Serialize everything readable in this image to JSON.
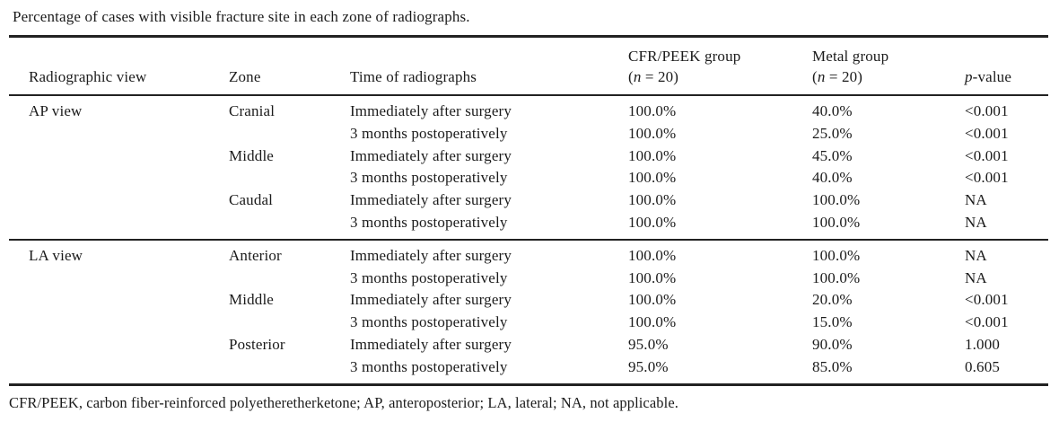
{
  "caption": "Percentage of cases with visible fracture site in each zone of radiographs.",
  "table": {
    "columns": {
      "view": "Radiographic view",
      "zone": "Zone",
      "time": "Time of radiographs",
      "cfr_group": "CFR/PEEK group",
      "metal_group": "Metal group",
      "n_prefix": "(",
      "n_symbol": "n",
      "n_suffix": " = 20)",
      "p_symbol": "p",
      "p_suffix": "-value"
    },
    "rows": [
      {
        "view": "AP view",
        "zone": "Cranial",
        "time": "Immediately after surgery",
        "cfr_peek": "100.0%",
        "metal": "40.0%",
        "p_value": "<0.001"
      },
      {
        "view": "",
        "zone": "",
        "time": "3 months postoperatively",
        "cfr_peek": "100.0%",
        "metal": "25.0%",
        "p_value": "<0.001"
      },
      {
        "view": "",
        "zone": "Middle",
        "time": "Immediately after surgery",
        "cfr_peek": "100.0%",
        "metal": "45.0%",
        "p_value": "<0.001"
      },
      {
        "view": "",
        "zone": "",
        "time": "3 months postoperatively",
        "cfr_peek": "100.0%",
        "metal": "40.0%",
        "p_value": "<0.001"
      },
      {
        "view": "",
        "zone": "Caudal",
        "time": "Immediately after surgery",
        "cfr_peek": "100.0%",
        "metal": "100.0%",
        "p_value": "NA"
      },
      {
        "view": "",
        "zone": "",
        "time": "3 months postoperatively",
        "cfr_peek": "100.0%",
        "metal": "100.0%",
        "p_value": "NA"
      },
      {
        "view": "LA view",
        "zone": "Anterior",
        "time": "Immediately after surgery",
        "cfr_peek": "100.0%",
        "metal": "100.0%",
        "p_value": "NA"
      },
      {
        "view": "",
        "zone": "",
        "time": "3 months postoperatively",
        "cfr_peek": "100.0%",
        "metal": "100.0%",
        "p_value": "NA"
      },
      {
        "view": "",
        "zone": "Middle",
        "time": "Immediately after surgery",
        "cfr_peek": "100.0%",
        "metal": "20.0%",
        "p_value": "<0.001"
      },
      {
        "view": "",
        "zone": "",
        "time": "3 months postoperatively",
        "cfr_peek": "100.0%",
        "metal": "15.0%",
        "p_value": "<0.001"
      },
      {
        "view": "",
        "zone": "Posterior",
        "time": "Immediately after surgery",
        "cfr_peek": "95.0%",
        "metal": "90.0%",
        "p_value": "1.000"
      },
      {
        "view": "",
        "zone": "",
        "time": "3 months postoperatively",
        "cfr_peek": "95.0%",
        "metal": "85.0%",
        "p_value": "0.605"
      }
    ]
  },
  "footnote": "CFR/PEEK, carbon fiber-reinforced polyetheretherketone; AP, anteroposterior; LA, lateral; NA, not applicable."
}
